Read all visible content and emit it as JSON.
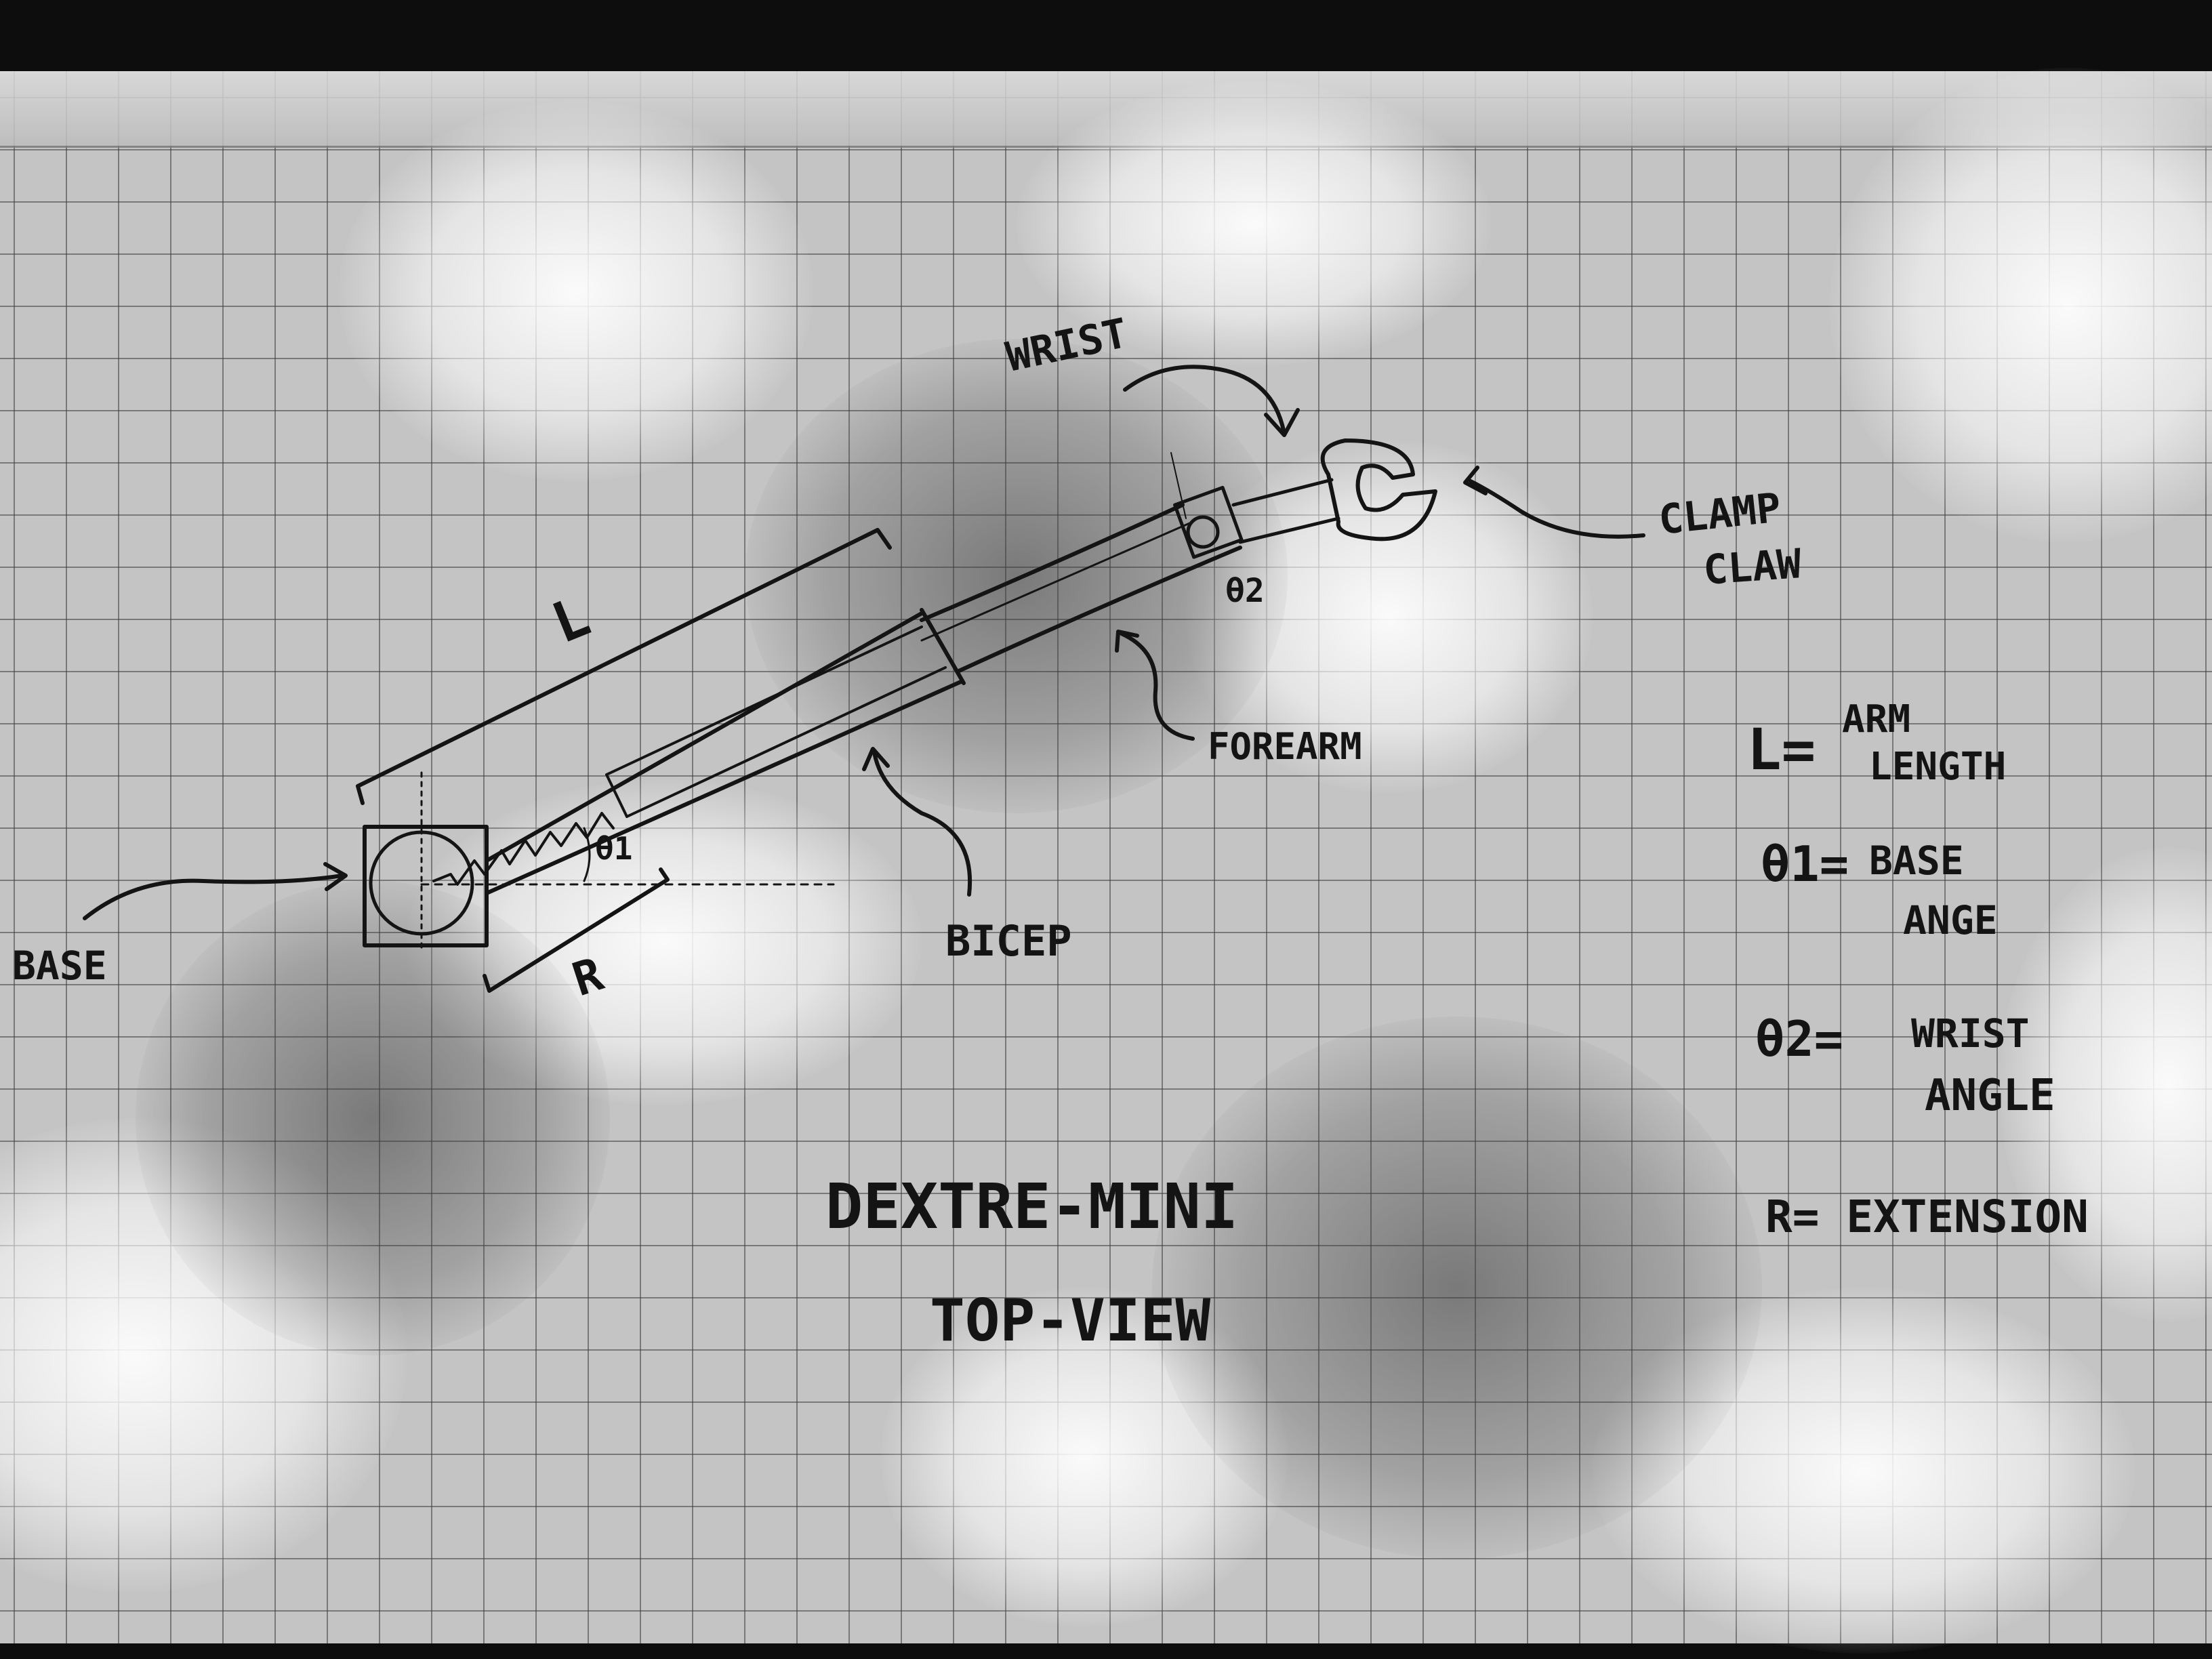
{
  "labels": {
    "wrist": "WRIST",
    "clamp_line1": "CLAMP",
    "clamp_line2": "CLAW",
    "length_symbol": "L",
    "theta2": "θ2",
    "theta1": "θ1",
    "forearm": "FOREARM",
    "bicep": "BICEP",
    "base": "BASE",
    "extension_symbol": "R"
  },
  "legend": {
    "arm_length_symbol": "L=",
    "arm_length_line1": "ARM",
    "arm_length_line2": "LENGTH",
    "base_angle_symbol": "θ1=",
    "base_angle_line1": "BASE",
    "base_angle_line2": "ANGE",
    "wrist_angle_symbol": "θ2=",
    "wrist_angle_line1": "WRIST",
    "wrist_angle_line2": "ANGLE",
    "extension_text": "R= EXTENSION"
  },
  "title": {
    "line1": "DEXTRE-MINI",
    "line2": "TOP-VIEW"
  },
  "colors": {
    "ink": "#141414",
    "paper": "#c4c4c4",
    "grid": "#3c3c3c"
  }
}
